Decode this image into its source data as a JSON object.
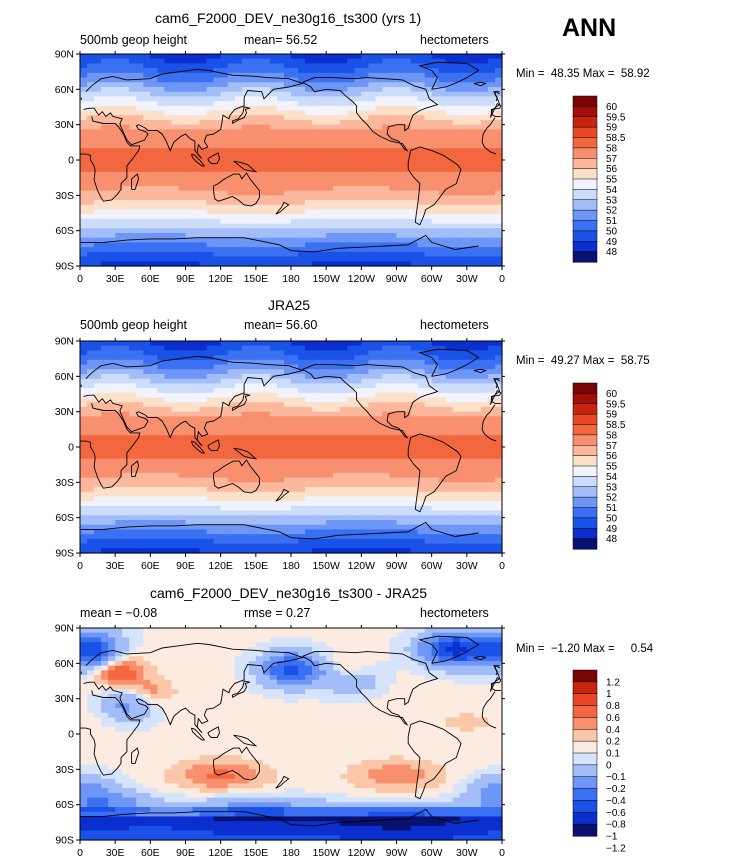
{
  "season": "ANN",
  "colors": {
    "abs_scale": [
      "#0a1070",
      "#0b2fcf",
      "#1a52e8",
      "#3a70f2",
      "#6d96f6",
      "#a2bdf8",
      "#ccdcfb",
      "#f1f4fe",
      "#fde0c9",
      "#fbb89c",
      "#f8906f",
      "#f3673f",
      "#e84827",
      "#c9240e",
      "#a10f07",
      "#7a0505"
    ],
    "diff_scale": [
      "#0a1070",
      "#0b2fcf",
      "#1a52e8",
      "#3a70f2",
      "#6d96f6",
      "#a2bdf8",
      "#d6e4fb",
      "#fcebe0",
      "#fbc7a9",
      "#f8906f",
      "#f3673f",
      "#e84827",
      "#c9240e",
      "#7a0505"
    ]
  },
  "panels": [
    {
      "title": "cam6_F2000_DEV_ne30g16_ts300 (yrs 1)",
      "left_header": "500mb geop height",
      "center_header": "mean=  56.52",
      "units": "hectometers",
      "minmax": "Min =  48.35 Max =  58.92",
      "colorbar_labels": [
        "60",
        "59.5",
        "59",
        "58.5",
        "58",
        "57",
        "56",
        "55",
        "54",
        "53",
        "52",
        "51",
        "50",
        "49",
        "48"
      ],
      "lat_labels": [
        "90N",
        "60N",
        "30N",
        "0",
        "30S",
        "60S",
        "90S"
      ],
      "lon_labels": [
        "0",
        "30E",
        "60E",
        "90E",
        "120E",
        "150E",
        "180",
        "150W",
        "120W",
        "90W",
        "60W",
        "30W",
        "0"
      ],
      "field": "abs"
    },
    {
      "title": "JRA25",
      "left_header": "500mb geop height",
      "center_header": "mean=  56.60",
      "units": "hectometers",
      "minmax": "Min =  49.27 Max =  58.75",
      "colorbar_labels": [
        "60",
        "59.5",
        "59",
        "58.5",
        "58",
        "57",
        "56",
        "55",
        "54",
        "53",
        "52",
        "51",
        "50",
        "49",
        "48"
      ],
      "lat_labels": [
        "90N",
        "60N",
        "30N",
        "0",
        "30S",
        "60S",
        "90S"
      ],
      "lon_labels": [
        "0",
        "30E",
        "60E",
        "90E",
        "120E",
        "150E",
        "180",
        "150W",
        "120W",
        "90W",
        "60W",
        "30W",
        "0"
      ],
      "field": "abs"
    },
    {
      "title": "cam6_F2000_DEV_ne30g16_ts300 - JRA25",
      "left_header": "mean =  −0.08",
      "center_header": "rmse =     0.27",
      "units": "hectometers",
      "minmax": "Min =  −1.20 Max =     0.54",
      "colorbar_labels": [
        "1.2",
        "1",
        "0.8",
        "0.6",
        "0.4",
        "0.2",
        "0.1",
        "0",
        "−0.1",
        "−0.2",
        "−0.4",
        "−0.6",
        "−0.8",
        "−1",
        "−1.2"
      ],
      "lat_labels": [
        "90N",
        "60N",
        "30N",
        "0",
        "30S",
        "60S",
        "90S"
      ],
      "lon_labels": [
        "0",
        "30E",
        "60E",
        "90E",
        "120E",
        "150E",
        "180",
        "150W",
        "120W",
        "90W",
        "60W",
        "30W",
        "0"
      ],
      "field": "diff"
    }
  ]
}
